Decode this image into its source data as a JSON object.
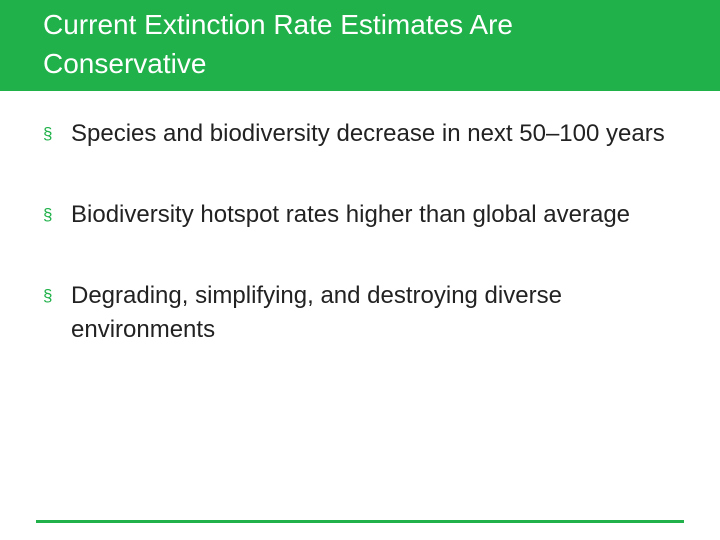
{
  "slide": {
    "title": "Current Extinction Rate Estimates Are Conservative",
    "bullet_marker": "§",
    "bullets": [
      "Species and biodiversity decrease in next 50–100 years",
      "Biodiversity hotspot rates higher than global average",
      "Degrading, simplifying, and destroying diverse environments"
    ]
  },
  "colors": {
    "accent": "#20b14a",
    "title_text": "#ffffff",
    "body_text": "#222222",
    "background": "#ffffff"
  }
}
